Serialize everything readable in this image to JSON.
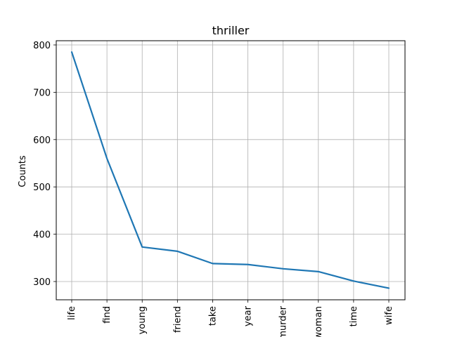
{
  "chart_data": {
    "type": "line",
    "title": "thriller",
    "xlabel": "",
    "ylabel": "Counts",
    "categories": [
      "life",
      "find",
      "young",
      "friend",
      "take",
      "year",
      "murder",
      "woman",
      "time",
      "wife"
    ],
    "series": [
      {
        "values": [
          785,
          560,
          373,
          364,
          338,
          336,
          327,
          321,
          301,
          286
        ]
      }
    ],
    "yticks": [
      300,
      400,
      500,
      600,
      700,
      800
    ],
    "ylim": [
      260,
      810
    ],
    "grid": true,
    "line_color": "#1f77b4"
  }
}
